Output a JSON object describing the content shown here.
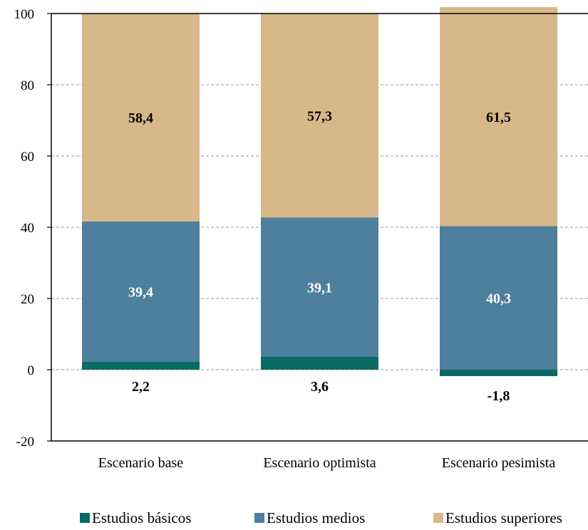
{
  "chart_data": {
    "type": "bar",
    "stacked": true,
    "categories": [
      "Escenario base",
      "Escenario optimista",
      "Escenario pesimista"
    ],
    "series": [
      {
        "name": "Estudios básicos",
        "values": [
          2.2,
          3.6,
          -1.8
        ],
        "labels": [
          "2,2",
          "3,6",
          "-1,8"
        ],
        "color": "#0a6b65",
        "label_color": "#000000"
      },
      {
        "name": "Estudios medios",
        "values": [
          39.4,
          39.1,
          40.3
        ],
        "labels": [
          "39,4",
          "39,1",
          "40,3"
        ],
        "color": "#4e7f9d",
        "label_color": "#ffffff"
      },
      {
        "name": "Estudios superiores",
        "values": [
          58.4,
          57.3,
          61.5
        ],
        "labels": [
          "58,4",
          "57,3",
          "61,5"
        ],
        "color": "#d8b789",
        "label_color": "#000000"
      }
    ],
    "ylim": [
      -20,
      100
    ],
    "yticks": [
      -20,
      0,
      20,
      40,
      60,
      80,
      100
    ],
    "ytick_labels": [
      "-20",
      "0",
      "20",
      "40",
      "60",
      "80",
      "100"
    ],
    "grid": true,
    "legend": "bottom"
  }
}
